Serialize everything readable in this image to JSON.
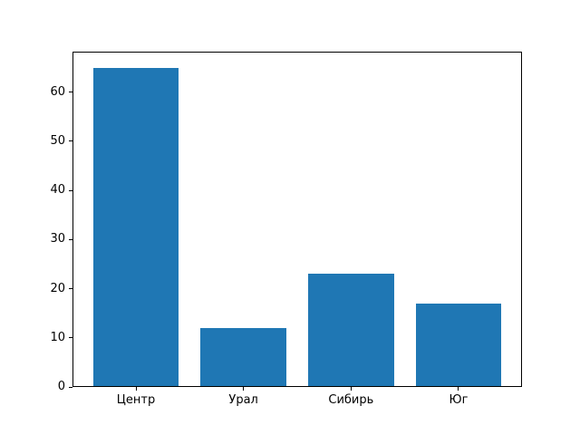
{
  "chart_data": {
    "type": "bar",
    "categories": [
      "Центр",
      "Урал",
      "Сибирь",
      "Юг"
    ],
    "values": [
      65,
      12,
      23,
      17
    ],
    "title": "",
    "xlabel": "",
    "ylabel": "",
    "xlim": [
      -0.59,
      3.59
    ],
    "ylim": [
      0,
      68.25
    ],
    "yticks": [
      0,
      10,
      20,
      30,
      40,
      50,
      60
    ],
    "bar_width": 0.8,
    "bar_color": "#1f77b4",
    "axis_color": "#000000",
    "background_color": "#ffffff",
    "grid": false,
    "legend": null
  }
}
